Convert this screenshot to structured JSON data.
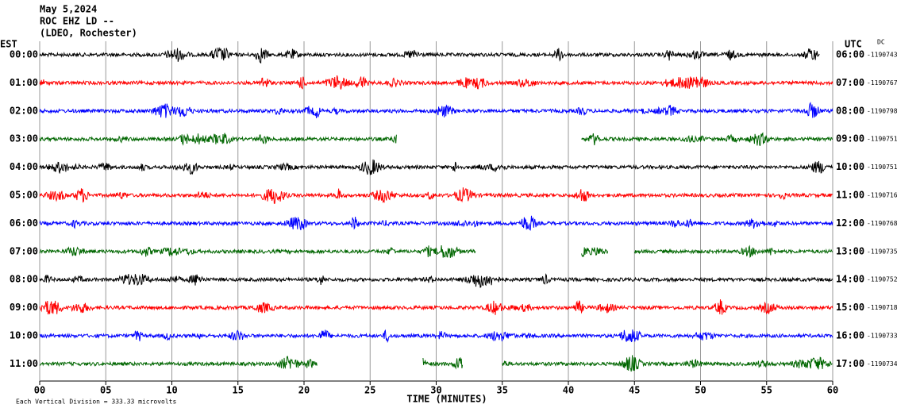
{
  "header": {
    "date": "May 5,2024",
    "station": "ROC EHZ LD --",
    "network": "(LDEO, Rochester)"
  },
  "left_axis_title": "EST",
  "right_axis_title": "UTC",
  "dc_title": "DC",
  "x_axis": {
    "label": "TIME (MINUTES)",
    "xlim": [
      0,
      60
    ],
    "ticks": [
      {
        "value": 0,
        "label": "00"
      },
      {
        "value": 5,
        "label": "05"
      },
      10,
      15,
      20,
      25,
      30,
      35,
      40,
      45,
      50,
      55,
      60
    ]
  },
  "footer": "Each Vertical Division =  333.33 microvolts",
  "rows": [
    {
      "est": "00:00",
      "utc": "06:00",
      "dc": "-1190743",
      "color": "#000000",
      "spans": [
        [
          0,
          59
        ]
      ]
    },
    {
      "est": "01:00",
      "utc": "07:00",
      "dc": "-1190767",
      "color": "#ff0000",
      "spans": [
        [
          0,
          60
        ]
      ]
    },
    {
      "est": "02:00",
      "utc": "08:00",
      "dc": "-1190798",
      "color": "#0000ff",
      "spans": [
        [
          0,
          60
        ]
      ]
    },
    {
      "est": "03:00",
      "utc": "09:00",
      "dc": "-1190751",
      "color": "#006600",
      "spans": [
        [
          0,
          27
        ],
        [
          41,
          60
        ]
      ]
    },
    {
      "est": "04:00",
      "utc": "10:00",
      "dc": "-1190751",
      "color": "#000000",
      "spans": [
        [
          0,
          60
        ]
      ]
    },
    {
      "est": "05:00",
      "utc": "11:00",
      "dc": "-1190716",
      "color": "#ff0000",
      "spans": [
        [
          0,
          60
        ]
      ]
    },
    {
      "est": "06:00",
      "utc": "12:00",
      "dc": "-1190768",
      "color": "#0000ff",
      "spans": [
        [
          0,
          60
        ]
      ]
    },
    {
      "est": "07:00",
      "utc": "13:00",
      "dc": "-1190735",
      "color": "#006600",
      "spans": [
        [
          0,
          33
        ],
        [
          41,
          43
        ],
        [
          45,
          60
        ]
      ]
    },
    {
      "est": "08:00",
      "utc": "14:00",
      "dc": "-1190752",
      "color": "#000000",
      "spans": [
        [
          0,
          60
        ]
      ]
    },
    {
      "est": "09:00",
      "utc": "15:00",
      "dc": "-1190718",
      "color": "#ff0000",
      "spans": [
        [
          0,
          60
        ]
      ]
    },
    {
      "est": "10:00",
      "utc": "16:00",
      "dc": "-1190733",
      "color": "#0000ff",
      "spans": [
        [
          0,
          60
        ]
      ]
    },
    {
      "est": "11:00",
      "utc": "17:00",
      "dc": "-1190734",
      "color": "#006600",
      "spans": [
        [
          0,
          21
        ],
        [
          29,
          32
        ],
        [
          35,
          60
        ]
      ]
    }
  ]
}
